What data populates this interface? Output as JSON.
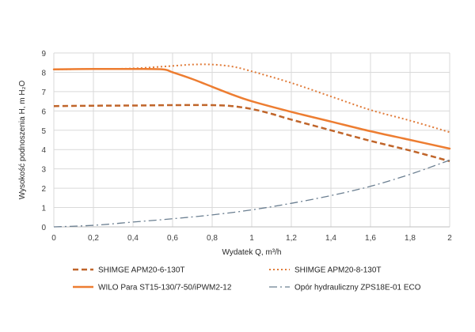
{
  "chart_data": {
    "type": "line",
    "title": "",
    "xlabel": "Wydatek Q, m³/h",
    "ylabel": "Wysokość podnoszenia H, m H₂O",
    "xlim": [
      0,
      2
    ],
    "ylim": [
      0,
      9
    ],
    "grid": true,
    "legend_position": "bottom",
    "x_ticks": [
      "0",
      "0,2",
      "0,4",
      "0,6",
      "0,8",
      "1",
      "1,2",
      "1,4",
      "1,6",
      "1,8",
      "2"
    ],
    "y_ticks": [
      "0",
      "1",
      "2",
      "3",
      "4",
      "5",
      "6",
      "7",
      "8",
      "9"
    ],
    "series": [
      {
        "name": "SHIMGE APM20-6-130T",
        "color": "#c0652a",
        "style": "dashed",
        "x": [
          0,
          0.2,
          0.4,
          0.6,
          0.8,
          0.9,
          1.0,
          1.1,
          1.2,
          1.4,
          1.6,
          1.8,
          2.0
        ],
        "y": [
          6.25,
          6.27,
          6.28,
          6.3,
          6.3,
          6.25,
          6.1,
          5.85,
          5.55,
          5.0,
          4.45,
          3.95,
          3.4
        ]
      },
      {
        "name": "SHIMGE APM20-8-130T",
        "color": "#e07b39",
        "style": "dotted",
        "x": [
          0,
          0.2,
          0.4,
          0.6,
          0.7,
          0.8,
          0.9,
          1.0,
          1.2,
          1.4,
          1.6,
          1.8,
          2.0
        ],
        "y": [
          8.15,
          8.17,
          8.2,
          8.33,
          8.4,
          8.4,
          8.3,
          8.05,
          7.45,
          6.75,
          6.05,
          5.5,
          4.9
        ]
      },
      {
        "name": "WILO Para ST15-130/7-50/iPWM2-12",
        "color": "#ed7d31",
        "style": "solid",
        "x": [
          0,
          0.2,
          0.4,
          0.55,
          0.6,
          0.7,
          0.8,
          0.9,
          1.0,
          1.2,
          1.4,
          1.6,
          1.8,
          2.0
        ],
        "y": [
          8.15,
          8.17,
          8.17,
          8.15,
          8.0,
          7.65,
          7.25,
          6.85,
          6.5,
          5.95,
          5.45,
          4.95,
          4.5,
          4.05
        ]
      },
      {
        "name": "Opór hydrauliczny ZPS18E-01 ECO",
        "color": "#6b7f91",
        "style": "dash-dot",
        "x": [
          0,
          0.2,
          0.4,
          0.6,
          0.8,
          1.0,
          1.2,
          1.4,
          1.6,
          1.8,
          2.0
        ],
        "y": [
          0.0,
          0.08,
          0.25,
          0.42,
          0.62,
          0.88,
          1.22,
          1.62,
          2.1,
          2.72,
          3.45
        ]
      }
    ]
  }
}
